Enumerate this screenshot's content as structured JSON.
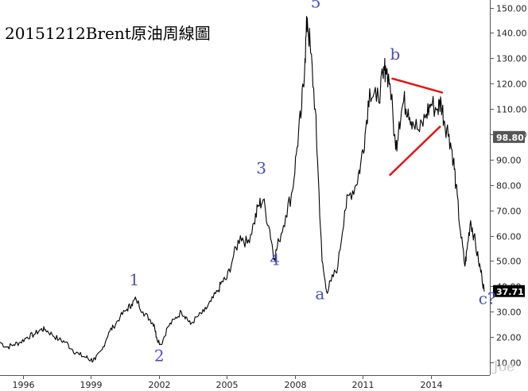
{
  "title": "20151212Brent原油周線圖",
  "watermark": "Joe",
  "chart_data": {
    "type": "line",
    "xlabel": "",
    "ylabel": "",
    "xlim": [
      1995.0,
      2016.6
    ],
    "ylim": [
      5,
      153
    ],
    "x_ticks": [
      1996,
      1999,
      2002,
      2005,
      2008,
      2011,
      2014
    ],
    "y_ticks": [
      10,
      20,
      30,
      40,
      50,
      60,
      70,
      80,
      90,
      100,
      110,
      120,
      130,
      140,
      150
    ],
    "y_tick_labels": [
      "10.00",
      "20.00",
      "30.00",
      "40.00",
      "50.00",
      "60.00",
      "70.00",
      "80.00",
      "90.00",
      "100.00",
      "110.00",
      "120.00",
      "130.00",
      "140.00",
      "150.00"
    ],
    "grid": false,
    "series": [
      {
        "values_x": [
          1995.0,
          1995.3,
          1995.6,
          1995.9,
          1996.2,
          1996.5,
          1996.8,
          1997.0,
          1997.3,
          1997.6,
          1997.9,
          1998.2,
          1998.5,
          1998.8,
          1999.0,
          1999.2,
          1999.5,
          1999.8,
          2000.0,
          2000.3,
          2000.6,
          2000.8,
          2001.0,
          2001.3,
          2001.6,
          2001.8,
          2001.9,
          2002.1,
          2002.4,
          2002.7,
          2003.0,
          2003.2,
          2003.4,
          2003.7,
          2004.0,
          2004.3,
          2004.6,
          2004.8,
          2005.0,
          2005.3,
          2005.6,
          2005.9,
          2006.2,
          2006.4,
          2006.6,
          2006.9,
          2007.1,
          2007.3,
          2007.6,
          2007.9,
          2008.1,
          2008.3,
          2008.45,
          2008.55,
          2008.7,
          2008.9,
          2009.0,
          2009.2,
          2009.4,
          2009.6,
          2009.9,
          2010.2,
          2010.4,
          2010.7,
          2010.9,
          2011.1,
          2011.3,
          2011.6,
          2011.9,
          2012.0,
          2012.2,
          2012.45,
          2012.6,
          2012.8,
          2013.0,
          2013.2,
          2013.5,
          2013.8,
          2014.0,
          2014.3,
          2014.45,
          2014.6,
          2014.8,
          2015.0,
          2015.1,
          2015.3,
          2015.5,
          2015.6,
          2015.75,
          2015.9,
          2016.1,
          2016.25,
          2016.35
        ],
        "values_y": [
          18,
          16,
          17,
          18,
          20,
          21,
          23,
          23,
          21,
          19,
          18,
          15,
          13,
          12,
          11,
          11,
          15,
          22,
          24,
          28,
          31,
          33,
          35,
          30,
          27,
          25,
          20,
          17,
          24,
          27,
          30,
          28,
          25,
          28,
          30,
          34,
          38,
          42,
          43,
          52,
          60,
          57,
          65,
          72,
          74,
          62,
          51,
          58,
          68,
          78,
          95,
          110,
          130,
          146,
          132,
          110,
          90,
          50,
          38,
          42,
          48,
          70,
          76,
          80,
          88,
          100,
          118,
          113,
          122,
          127,
          120,
          94,
          105,
          113,
          110,
          105,
          101,
          108,
          112,
          110,
          113,
          105,
          100,
          90,
          80,
          62,
          48,
          55,
          66,
          60,
          50,
          44,
          38
        ],
        "last_value_label": "37.71"
      }
    ],
    "highlight_label": "98.80",
    "wave_labels": [
      {
        "text": "1",
        "x": 2000.7,
        "y": 40.5
      },
      {
        "text": "2",
        "x": 2001.8,
        "y": 10.5
      },
      {
        "text": "3",
        "x": 2006.3,
        "y": 84.5
      },
      {
        "text": "4",
        "x": 2006.9,
        "y": 48.5
      },
      {
        "text": "5",
        "x": 2008.7,
        "y": 150
      },
      {
        "text": "a",
        "x": 2008.9,
        "y": 35
      },
      {
        "text": "b",
        "x": 2012.2,
        "y": 129.5
      },
      {
        "text": "c?",
        "x": 2016.1,
        "y": 33
      }
    ],
    "trend_lines": [
      {
        "x1": 2012.3,
        "y1": 122,
        "x2": 2014.5,
        "y2": 116.5
      },
      {
        "x1": 2012.2,
        "y1": 84,
        "x2": 2014.4,
        "y2": 103
      }
    ]
  }
}
